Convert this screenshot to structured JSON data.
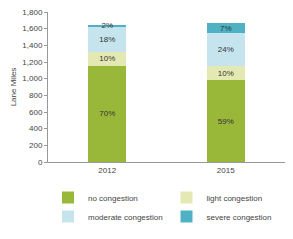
{
  "chart_data": {
    "type": "bar",
    "stacked": true,
    "y_label": "Lane Miles",
    "categories": [
      "2012",
      "2015"
    ],
    "series": [
      {
        "name": "no congestion",
        "color": "#99b83a",
        "values": [
          1155,
          982
        ],
        "percent_labels": [
          "70%",
          "59%"
        ]
      },
      {
        "name": "light congestion",
        "color": "#e4e9b4",
        "values": [
          165,
          167
        ],
        "percent_labels": [
          "10%",
          "10%"
        ]
      },
      {
        "name": "moderate congestion",
        "color": "#c6e4ee",
        "values": [
          297,
          400
        ],
        "percent_labels": [
          "18%",
          "24%"
        ]
      },
      {
        "name": "severe congestion",
        "color": "#4fb2c4",
        "values": [
          33,
          116
        ],
        "percent_labels": [
          "2%",
          "7%"
        ]
      }
    ],
    "ylim": [
      0,
      1800
    ],
    "yticks": [
      0,
      200,
      400,
      600,
      800,
      {
        "value": 1000,
        "label": "1,000"
      },
      {
        "value": 1200,
        "label": "1,200"
      },
      {
        "value": 1400,
        "label": "1,400"
      },
      {
        "value": 1600,
        "label": "1,600"
      },
      {
        "value": 1800,
        "label": "1,800"
      }
    ],
    "grid": false,
    "legend": "bottom"
  }
}
